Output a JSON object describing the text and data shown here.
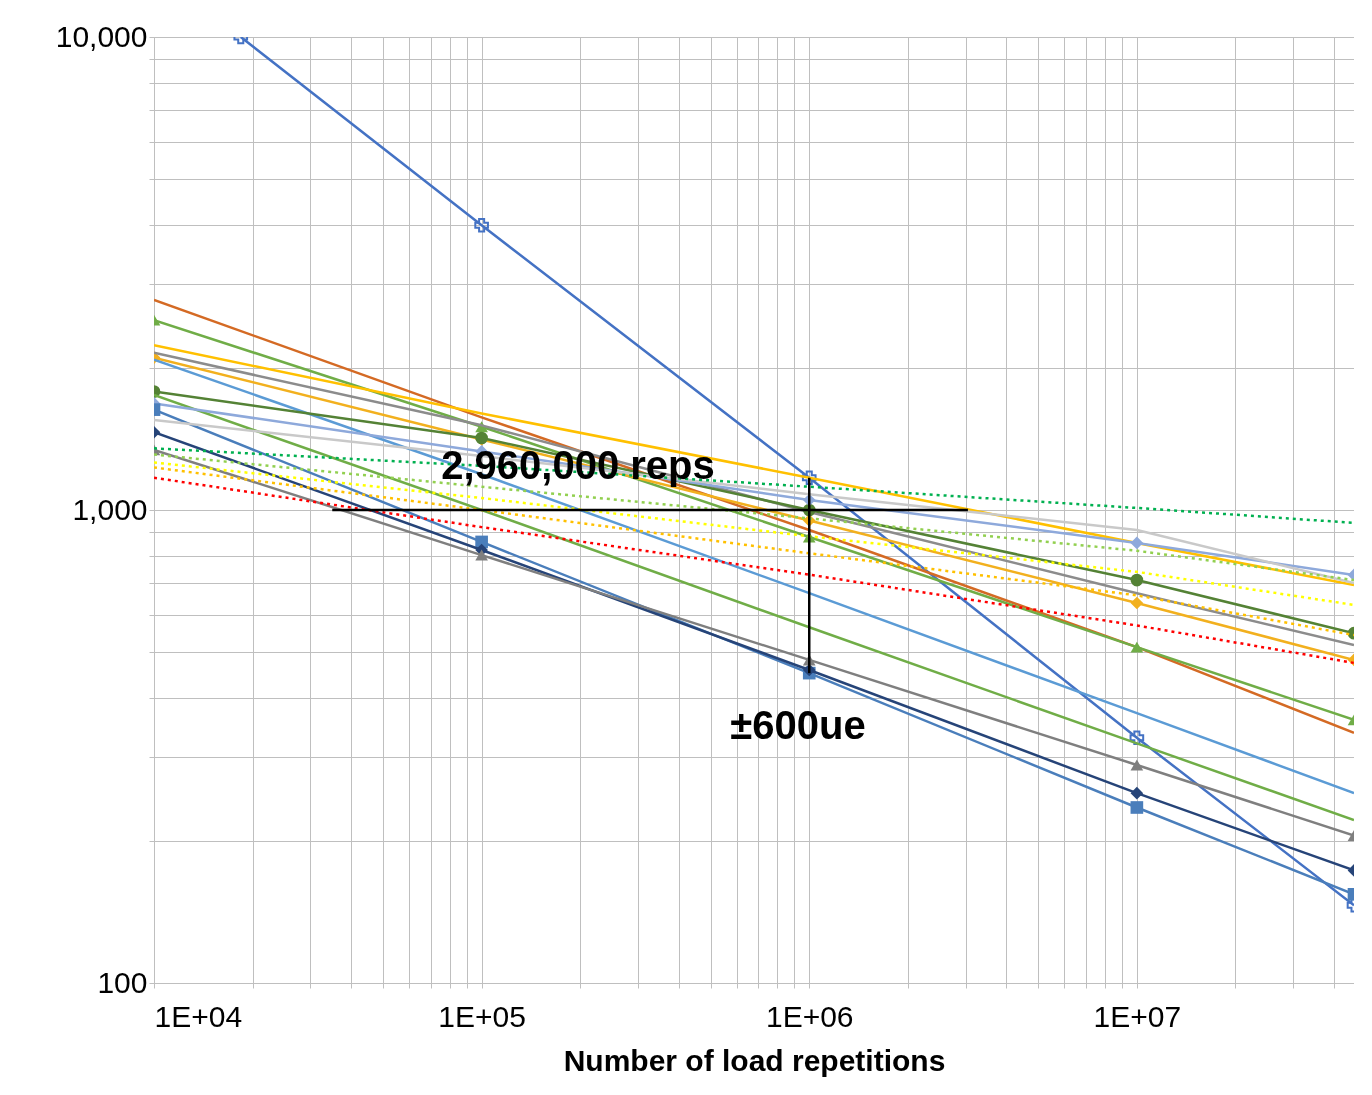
{
  "chart_data": {
    "type": "line",
    "xlabel": "Number of load repetitions",
    "log": "xy",
    "grid": true,
    "line_style": "solid",
    "x": [
      10000,
      100000,
      1000000,
      10000000,
      46000000
    ],
    "xlim": [
      10000,
      46000000
    ],
    "ylim": [
      100,
      10000
    ],
    "xticks": [
      {
        "value": 10000,
        "label": "1E+04"
      },
      {
        "value": 20000,
        "label": null
      },
      {
        "value": 30000,
        "label": null
      },
      {
        "value": 40000,
        "label": null
      },
      {
        "value": 50000,
        "label": null
      },
      {
        "value": 60000,
        "label": null
      },
      {
        "value": 70000,
        "label": null
      },
      {
        "value": 80000,
        "label": null
      },
      {
        "value": 90000,
        "label": null
      },
      {
        "value": 100000,
        "label": "1E+05"
      },
      {
        "value": 200000,
        "label": null
      },
      {
        "value": 300000,
        "label": null
      },
      {
        "value": 400000,
        "label": null
      },
      {
        "value": 500000,
        "label": null
      },
      {
        "value": 600000,
        "label": null
      },
      {
        "value": 700000,
        "label": null
      },
      {
        "value": 800000,
        "label": null
      },
      {
        "value": 900000,
        "label": null
      },
      {
        "value": 1000000,
        "label": "1E+06"
      },
      {
        "value": 2000000,
        "label": null
      },
      {
        "value": 3000000,
        "label": null
      },
      {
        "value": 4000000,
        "label": null
      },
      {
        "value": 5000000,
        "label": null
      },
      {
        "value": 6000000,
        "label": null
      },
      {
        "value": 7000000,
        "label": null
      },
      {
        "value": 8000000,
        "label": null
      },
      {
        "value": 9000000,
        "label": null
      },
      {
        "value": 10000000,
        "label": "1E+07"
      },
      {
        "value": 20000000,
        "label": null
      },
      {
        "value": 30000000,
        "label": null
      },
      {
        "value": 40000000,
        "label": null
      }
    ],
    "yticks": [
      100,
      {
        "value": 200,
        "label": null
      },
      {
        "value": 300,
        "label": null
      },
      {
        "value": 400,
        "label": null
      },
      {
        "value": 500,
        "label": null
      },
      {
        "value": 600,
        "label": null
      },
      {
        "value": 700,
        "label": null
      },
      {
        "value": 800,
        "label": null
      },
      {
        "value": 900,
        "label": null
      },
      {
        "value": 1000,
        "label": "1,000"
      },
      {
        "value": 2000,
        "label": null
      },
      {
        "value": 3000,
        "label": null
      },
      {
        "value": 4000,
        "label": null
      },
      {
        "value": 5000,
        "label": null
      },
      {
        "value": 6000,
        "label": null
      },
      {
        "value": 7000,
        "label": null
      },
      {
        "value": 8000,
        "label": null
      },
      {
        "value": 9000,
        "label": null
      },
      {
        "value": 10000,
        "label": "10,000"
      }
    ],
    "series": [
      {
        "color": "#4472c4",
        "marker": "cross",
        "x": [
          18400,
          100000,
          1000000,
          10000000,
          46000000
        ],
        "values": [
          10000,
          4000,
          1170,
          330,
          146
        ]
      },
      {
        "color": "#d46a24",
        "marker": "none",
        "values": [
          2780,
          1570,
          907,
          513,
          338
        ]
      },
      {
        "color": "#70ad47",
        "marker": "triangle",
        "values": [
          2520,
          1500,
          877,
          513,
          360
        ]
      },
      {
        "color": "#ffc000",
        "marker": "none",
        "values": [
          2230,
          1600,
          1170,
          852,
          694
        ]
      },
      {
        "color": "#f2b01e",
        "marker": "diamond",
        "values": [
          2100,
          1410,
          950,
          636,
          482
        ]
      },
      {
        "color": "#8c8c8c",
        "marker": "none",
        "values": [
          2150,
          1510,
          990,
          667,
          518
        ]
      },
      {
        "color": "#5b9bd5",
        "marker": "none",
        "values": [
          2080,
          1190,
          667,
          372,
          252
        ]
      },
      {
        "color": "#548235",
        "marker": "circle",
        "values": [
          1780,
          1420,
          1000,
          711,
          549
        ]
      },
      {
        "color": "#70ad47",
        "marker": "none",
        "values": [
          1750,
          1000,
          565,
          321,
          221
        ]
      },
      {
        "color": "#8ea9db",
        "marker": "diamond",
        "values": [
          1680,
          1330,
          1050,
          852,
          729
        ]
      },
      {
        "color": "#4a7ebb",
        "marker": "square",
        "values": [
          1630,
          856,
          452,
          235,
          154
        ]
      },
      {
        "color": "#c9c9c9",
        "marker": "none",
        "values": [
          1550,
          1300,
          1080,
          907,
          701
        ]
      },
      {
        "color": "#264478",
        "marker": "diamond",
        "values": [
          1460,
          823,
          459,
          252,
          173
        ]
      },
      {
        "color": "#7f7f7f",
        "marker": "triangle",
        "values": [
          1340,
          803,
          482,
          289,
          205
        ]
      },
      {
        "color": "#00b050",
        "marker": "none",
        "line_style": "dotted",
        "values": [
          1350,
          1240,
          1120,
          1010,
          939
        ]
      },
      {
        "color": "#92d050",
        "marker": "none",
        "line_style": "dotted",
        "values": [
          1310,
          1120,
          960,
          820,
          711
        ]
      },
      {
        "color": "#ffff00",
        "marker": "none",
        "line_style": "dotted",
        "values": [
          1260,
          1060,
          880,
          740,
          630
        ]
      },
      {
        "color": "#ffc000",
        "marker": "none",
        "line_style": "dotted",
        "values": [
          1230,
          1000,
          810,
          660,
          544
        ]
      },
      {
        "color": "#ff0000",
        "marker": "none",
        "line_style": "dotted",
        "values": [
          1170,
          920,
          730,
          570,
          475
        ]
      },
      {
        "color": "#000000",
        "marker": "none",
        "x": [
          35000,
          3050000
        ],
        "values": [
          1000,
          1000
        ]
      },
      {
        "color": "#000000",
        "marker": "none",
        "x": [
          1000000,
          1000000
        ],
        "values": [
          1170,
          452
        ]
      }
    ],
    "annotations": [
      "2,960,000 reps",
      "±600ue"
    ]
  }
}
